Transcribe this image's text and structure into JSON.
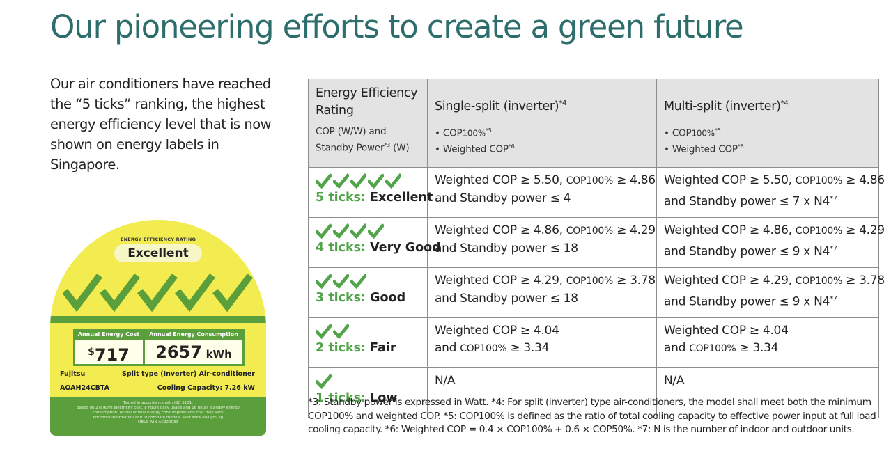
{
  "page": {
    "title": "Our pioneering efforts to create a green future",
    "intro": "Our air conditioners have reached the “5 ticks” ranking, the highest energy efficiency level that is now shown on energy labels in Singapore."
  },
  "energy_label": {
    "rating_heading": "ENERGY EFFICIENCY RATING",
    "rating": "Excellent",
    "tick_count": 5,
    "cost_heading": "Annual Energy Cost",
    "consumption_heading": "Annual Energy Consumption",
    "cost_symbol": "$",
    "cost_value": "717",
    "consumption_value": "2657",
    "consumption_unit": "kWh",
    "brand": "Fujitsu",
    "product_type": "Split type (Inverter) Air-conditioner",
    "model": "AOAH24CBTA",
    "cooling_capacity": "Cooling Capacity: 7.26 kW",
    "footer_lines": [
      "Tested in accordance with ISO 5151.",
      "Based on 27¢/kWh electricity cost, 8 hours daily usage and 16 hours standby energy",
      "consumption. Actual annual energy consumption and cost may vary.",
      "For more information and to compare models, visit www.nea.gov.sg",
      "MELS-WIN-AC220033"
    ],
    "colors": {
      "background": "#f2ec50",
      "green": "#5a9f3c"
    }
  },
  "table": {
    "header": {
      "col1_title": "Energy Efficiency Rating",
      "col1_sub_a": "COP (W/W) and",
      "col1_sub_b": "Standby Power",
      "col1_sub_b_sup": "*3",
      "col1_sub_b_tail": " (W)",
      "col2_title": "Single-split (inverter)",
      "col2_sup": "*4",
      "col3_title": "Multi-split (inverter)",
      "col3_sup": "*4",
      "bullet1_pre": "• COP",
      "bullet1_small": "100%",
      "bullet1_sup": "*5",
      "bullet2": "• Weighted COP",
      "bullet2_sup": "*6"
    },
    "rows": [
      {
        "ticks": 5,
        "tick_count_label": "5 ticks:",
        "rating": "Excellent",
        "single_l1_a": "Weighted COP ≥ 5.50, ",
        "single_l1_cop": "COP100%",
        "single_l1_b": " ≥ 4.86",
        "single_l2": "and Standby power ≤ 4",
        "multi_l1_a": "Weighted COP ≥ 5.50, ",
        "multi_l1_cop": "COP100%",
        "multi_l1_b": " ≥ 4.86",
        "multi_l2": "and Standby power ≤ 7 x N4",
        "multi_l2_sup": "*7"
      },
      {
        "ticks": 4,
        "tick_count_label": "4 ticks:",
        "rating": "Very Good",
        "single_l1_a": "Weighted COP ≥ 4.86, ",
        "single_l1_cop": "COP100%",
        "single_l1_b": " ≥ 4.29",
        "single_l2": "and Standby power ≤ 18",
        "multi_l1_a": "Weighted COP ≥ 4.86, ",
        "multi_l1_cop": "COP100%",
        "multi_l1_b": " ≥ 4.29",
        "multi_l2": "and Standby power ≤ 9 x N4",
        "multi_l2_sup": "*7"
      },
      {
        "ticks": 3,
        "tick_count_label": "3 ticks:",
        "rating": "Good",
        "single_l1_a": "Weighted COP ≥ 4.29, ",
        "single_l1_cop": "COP100%",
        "single_l1_b": " ≥ 3.78",
        "single_l2": "and Standby power ≤ 18",
        "multi_l1_a": "Weighted COP ≥ 4.29, ",
        "multi_l1_cop": "COP100%",
        "multi_l1_b": " ≥ 3.78",
        "multi_l2": "and Standby power ≤ 9 x N4",
        "multi_l2_sup": "*7"
      },
      {
        "ticks": 2,
        "tick_count_label": "2 ticks:",
        "rating": "Fair",
        "single_l1_a": "Weighted COP ≥ 4.04",
        "single_l2_pre": "and ",
        "single_l2_cop": "COP100%",
        "single_l2_post": " ≥ 3.34",
        "multi_l1_a": "Weighted COP ≥ 4.04",
        "multi_l2_pre": "and ",
        "multi_l2_cop": "COP100%",
        "multi_l2_post": " ≥ 3.34"
      },
      {
        "ticks": 1,
        "tick_count_label": "1 ticks:",
        "rating": "Low",
        "single_l1_a": "N/A",
        "multi_l1_a": "N/A"
      }
    ]
  },
  "footnote": "*3: Standby power is expressed in Watt. *4: For split (inverter) type air-conditioners, the model shall meet both the minimum COP100% and weighted COP. *5: COP100% is defined as the ratio of total cooling capacity to effective power input at full load cooling capacity. *6: Weighted COP = 0.4 × COP100% + 0.6 × COP50%. *7: N is the number of indoor and outdoor units.",
  "colors": {
    "title": "#2d6e6c",
    "tick_green": "#52a44a",
    "header_bg": "#e3e3e3",
    "border": "#8e8e8e"
  },
  "icons": {
    "tick": "check-mark-icon"
  }
}
